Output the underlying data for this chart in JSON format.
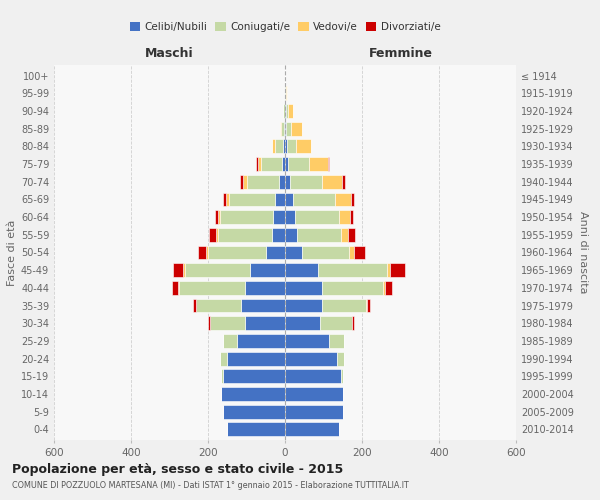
{
  "age_groups": [
    "100+",
    "95-99",
    "90-94",
    "85-89",
    "80-84",
    "75-79",
    "70-74",
    "65-69",
    "60-64",
    "55-59",
    "50-54",
    "45-49",
    "40-44",
    "35-39",
    "30-34",
    "25-29",
    "20-24",
    "15-19",
    "10-14",
    "5-9",
    "0-4"
  ],
  "birth_years": [
    "≤ 1914",
    "1915-1919",
    "1920-1924",
    "1925-1929",
    "1930-1934",
    "1935-1939",
    "1940-1944",
    "1945-1949",
    "1950-1954",
    "1955-1959",
    "1960-1964",
    "1965-1969",
    "1970-1974",
    "1975-1979",
    "1980-1984",
    "1985-1989",
    "1990-1994",
    "1995-1999",
    "2000-2004",
    "2005-2009",
    "2010-2014"
  ],
  "colors": {
    "celibe": "#4472C4",
    "coniugato": "#C5D9A5",
    "vedovo": "#FFCC66",
    "divorziato": "#CC0000"
  },
  "maschi": {
    "celibe": [
      0,
      0,
      0,
      2,
      4,
      8,
      15,
      25,
      30,
      35,
      50,
      90,
      105,
      115,
      105,
      125,
      150,
      160,
      165,
      160,
      150
    ],
    "coniugato": [
      0,
      0,
      4,
      8,
      22,
      55,
      85,
      120,
      140,
      140,
      150,
      170,
      170,
      115,
      90,
      35,
      18,
      5,
      0,
      0,
      0
    ],
    "vedovo": [
      0,
      0,
      2,
      4,
      8,
      8,
      8,
      8,
      5,
      4,
      4,
      4,
      4,
      0,
      0,
      0,
      0,
      0,
      0,
      0,
      0
    ],
    "divorziato": [
      0,
      0,
      0,
      0,
      0,
      5,
      8,
      8,
      8,
      18,
      22,
      28,
      14,
      8,
      4,
      0,
      0,
      0,
      0,
      0,
      0
    ]
  },
  "femmine": {
    "celibe": [
      0,
      0,
      2,
      3,
      4,
      8,
      12,
      20,
      25,
      30,
      45,
      85,
      95,
      95,
      90,
      115,
      135,
      145,
      150,
      150,
      140
    ],
    "coniugato": [
      0,
      2,
      6,
      12,
      25,
      55,
      85,
      110,
      115,
      115,
      120,
      180,
      160,
      115,
      85,
      38,
      18,
      5,
      0,
      0,
      0
    ],
    "vedovo": [
      1,
      3,
      14,
      28,
      38,
      48,
      52,
      42,
      28,
      18,
      14,
      8,
      4,
      4,
      0,
      0,
      0,
      0,
      0,
      0,
      0
    ],
    "divorziato": [
      0,
      0,
      0,
      0,
      0,
      4,
      8,
      8,
      8,
      18,
      28,
      38,
      18,
      8,
      4,
      0,
      0,
      0,
      0,
      0,
      0
    ]
  },
  "xlim": 600,
  "title": "Popolazione per età, sesso e stato civile - 2015",
  "subtitle": "COMUNE DI POZZUOLO MARTESANA (MI) - Dati ISTAT 1° gennaio 2015 - Elaborazione TUTTITALIA.IT",
  "ylabel_left": "Fasce di età",
  "ylabel_right": "Anni di nascita",
  "xlabel_maschi": "Maschi",
  "xlabel_femmine": "Femmine",
  "legend_labels": [
    "Celibi/Nubili",
    "Coniugati/e",
    "Vedovi/e",
    "Divorziati/e"
  ],
  "bg_color": "#f0f0f0",
  "plot_bg_color": "#f8f8f8",
  "grid_color": "#d0d0d0"
}
